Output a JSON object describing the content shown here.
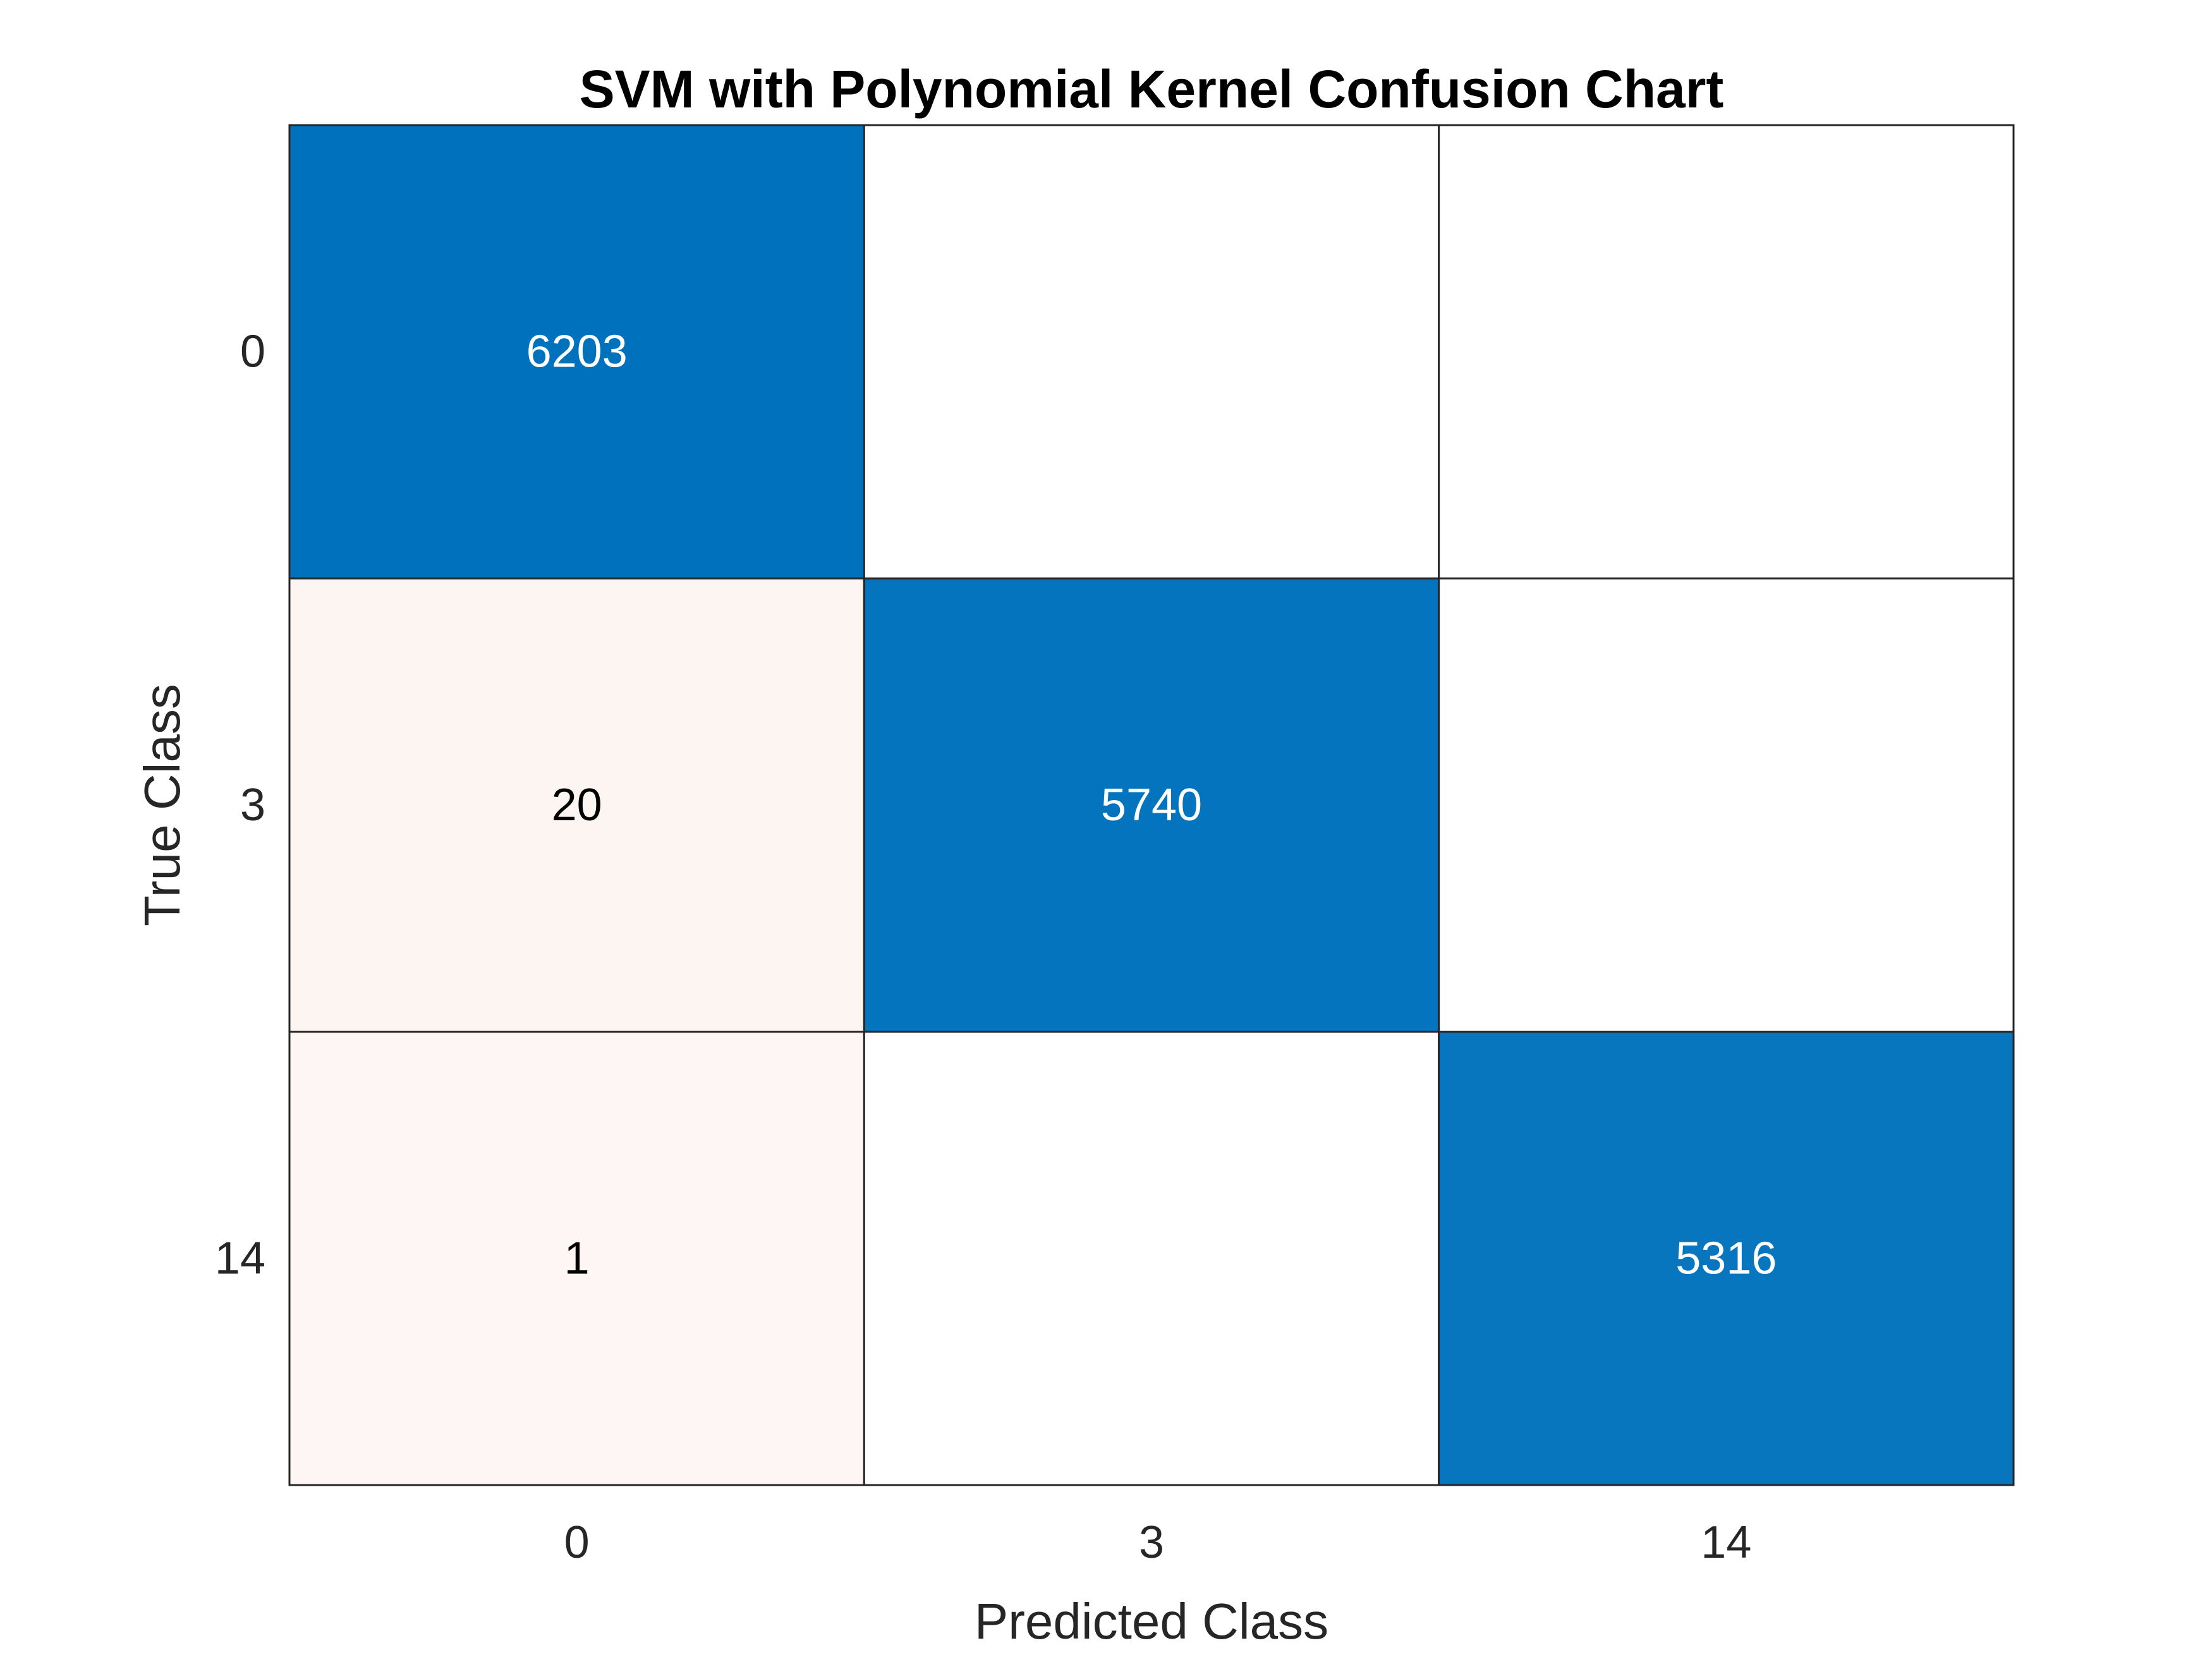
{
  "chart_data": {
    "type": "heatmap",
    "title": "SVM with Polynomial Kernel Confusion Chart",
    "xlabel": "Predicted Class",
    "ylabel": "True Class",
    "x_categories": [
      "0",
      "3",
      "14"
    ],
    "y_categories": [
      "0",
      "3",
      "14"
    ],
    "matrix": [
      [
        6203,
        0,
        0
      ],
      [
        20,
        5740,
        0
      ],
      [
        1,
        0,
        5316
      ]
    ],
    "cell_labels": [
      [
        "6203",
        "",
        ""
      ],
      [
        "20",
        "5740",
        ""
      ],
      [
        "1",
        "",
        "5316"
      ]
    ],
    "grid": true,
    "colors": {
      "diagonal_max": "#0072BD",
      "diagonal_min": "#FFFFFF",
      "offdiagonal_max": "#D95319",
      "offdiagonal_min": "#FFFFFF",
      "grid_line": "#262626",
      "text_dark": "#000000",
      "text_light": "#FFFFFF"
    }
  }
}
